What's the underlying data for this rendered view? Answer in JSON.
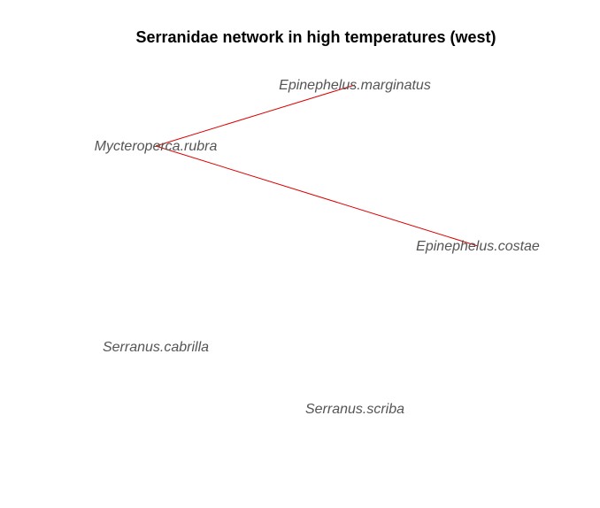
{
  "title": "Serranidae network in high temperatures (west)",
  "colors": {
    "edge": "#dd0000",
    "label": "#555555",
    "title": "#000000"
  },
  "nodes": [
    {
      "id": "epinephelus-marginatus",
      "label": "Epinephelus.marginatus"
    },
    {
      "id": "mycteroperca-rubra",
      "label": "Mycteroperca.rubra"
    },
    {
      "id": "epinephelus-costae",
      "label": "Epinephelus.costae"
    },
    {
      "id": "serranus-cabrilla",
      "label": "Serranus.cabrilla"
    },
    {
      "id": "serranus-scriba",
      "label": "Serranus.scriba"
    }
  ],
  "edges": [
    {
      "from": "mycteroperca-rubra",
      "to": "epinephelus-marginatus"
    },
    {
      "from": "mycteroperca-rubra",
      "to": "epinephelus-costae"
    }
  ]
}
